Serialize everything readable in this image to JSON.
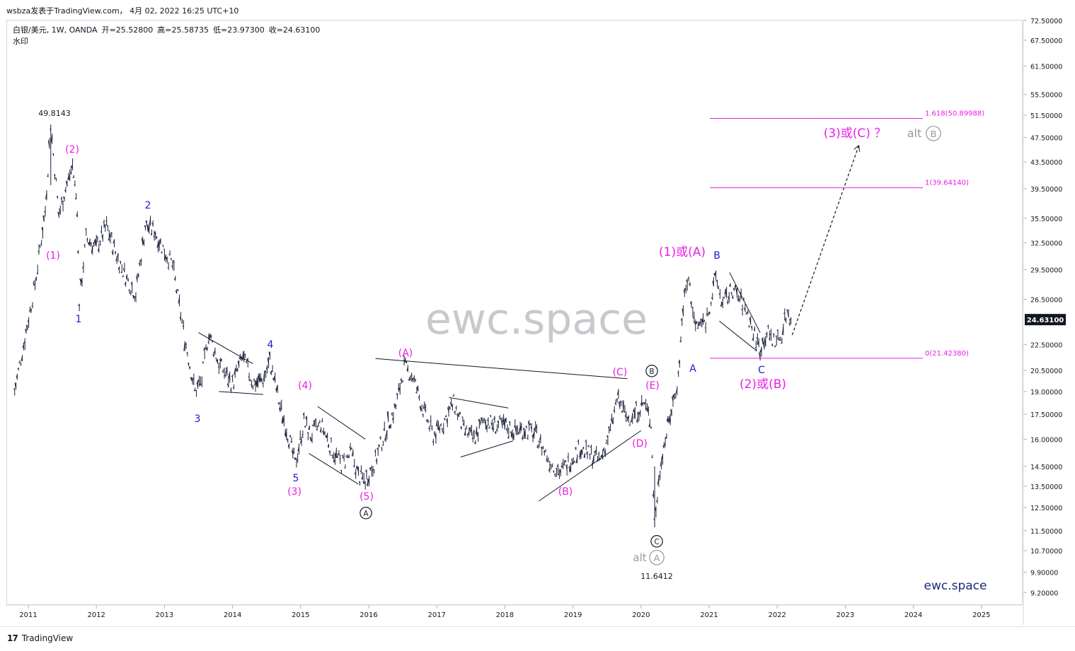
{
  "header": {
    "publisher": "wsbza发表于TradingView.com， 4月 02, 2022 16:25 UTC+10"
  },
  "legend": {
    "symbol": "白银/美元, 1W, OANDA",
    "open": "开=25.52800",
    "high": "高=25.58735",
    "low": "低=23.97300",
    "close": "收=24.63100",
    "watermark_label": "水印"
  },
  "watermark": "ewc.space",
  "brand_corner": "ewc.space",
  "footer": {
    "logo_text": "TradingView",
    "logo_mark": "17"
  },
  "colors": {
    "magenta": "#e91ee3",
    "blue": "#1a1ad6",
    "black": "#131722",
    "grey": "#9598a1",
    "price_badge": "#131722"
  },
  "chart_data": {
    "type": "line",
    "subtype": "ohlc-bars-weekly",
    "title": "白银/美元, 1W, OANDA",
    "xlabel": "",
    "ylabel": "",
    "x_ticks": [
      "2011",
      "2012",
      "2013",
      "2014",
      "2015",
      "2016",
      "2017",
      "2018",
      "2019",
      "2020",
      "2021",
      "2022",
      "2023",
      "2024",
      "2025"
    ],
    "y_ticks": [
      "72.50000",
      "67.50000",
      "61.50000",
      "55.50000",
      "51.50000",
      "47.50000",
      "43.50000",
      "39.50000",
      "35.50000",
      "32.50000",
      "29.50000",
      "26.50000",
      "22.50000",
      "20.50000",
      "19.00000",
      "17.50000",
      "16.00000",
      "14.50000",
      "13.50000",
      "12.50000",
      "11.50000",
      "10.70000",
      "9.90000",
      "9.20000"
    ],
    "y_scale": "log",
    "current_price": "24.63100",
    "series": [
      {
        "values": [
          [
            2010.8,
            19.0
          ],
          [
            2010.95,
            23.0
          ],
          [
            2011.1,
            28.0
          ],
          [
            2011.25,
            36.5
          ],
          [
            2011.33,
            49.8
          ],
          [
            2011.45,
            36.0
          ],
          [
            2011.55,
            39.5
          ],
          [
            2011.65,
            43.0
          ],
          [
            2011.72,
            37.0
          ],
          [
            2011.75,
            26.2
          ],
          [
            2011.85,
            33.0
          ],
          [
            2012.0,
            32.0
          ],
          [
            2012.15,
            34.5
          ],
          [
            2012.3,
            31.0
          ],
          [
            2012.45,
            28.5
          ],
          [
            2012.58,
            27.0
          ],
          [
            2012.72,
            34.5
          ],
          [
            2012.85,
            34.0
          ],
          [
            2013.0,
            31.5
          ],
          [
            2013.12,
            30.0
          ],
          [
            2013.3,
            23.0
          ],
          [
            2013.45,
            19.0
          ],
          [
            2013.55,
            19.8
          ],
          [
            2013.65,
            23.5
          ],
          [
            2013.8,
            21.0
          ],
          [
            2014.0,
            19.5
          ],
          [
            2014.15,
            21.5
          ],
          [
            2014.3,
            19.6
          ],
          [
            2014.45,
            19.8
          ],
          [
            2014.55,
            21.2
          ],
          [
            2014.7,
            18.0
          ],
          [
            2014.85,
            15.8
          ],
          [
            2014.92,
            14.6
          ],
          [
            2015.05,
            17.0
          ],
          [
            2015.15,
            16.2
          ],
          [
            2015.3,
            16.9
          ],
          [
            2015.45,
            15.5
          ],
          [
            2015.6,
            14.6
          ],
          [
            2015.75,
            15.2
          ],
          [
            2015.85,
            14.0
          ],
          [
            2015.95,
            13.8
          ],
          [
            2016.1,
            14.8
          ],
          [
            2016.25,
            16.5
          ],
          [
            2016.4,
            18.0
          ],
          [
            2016.52,
            20.8
          ],
          [
            2016.65,
            20.0
          ],
          [
            2016.8,
            17.8
          ],
          [
            2016.95,
            16.2
          ],
          [
            2017.1,
            17.0
          ],
          [
            2017.25,
            18.2
          ],
          [
            2017.4,
            16.5
          ],
          [
            2017.55,
            16.0
          ],
          [
            2017.7,
            17.2
          ],
          [
            2017.85,
            16.8
          ],
          [
            2018.0,
            16.8
          ],
          [
            2018.15,
            16.5
          ],
          [
            2018.3,
            16.6
          ],
          [
            2018.45,
            16.3
          ],
          [
            2018.6,
            15.2
          ],
          [
            2018.7,
            14.6
          ],
          [
            2018.82,
            14.2
          ],
          [
            2018.95,
            14.8
          ],
          [
            2019.1,
            15.5
          ],
          [
            2019.25,
            15.1
          ],
          [
            2019.4,
            14.8
          ],
          [
            2019.55,
            16.5
          ],
          [
            2019.65,
            18.5
          ],
          [
            2019.8,
            17.2
          ],
          [
            2019.95,
            17.8
          ],
          [
            2020.05,
            18.2
          ],
          [
            2020.15,
            17.0
          ],
          [
            2020.2,
            11.8
          ],
          [
            2020.3,
            15.0
          ],
          [
            2020.45,
            17.8
          ],
          [
            2020.55,
            20.0
          ],
          [
            2020.62,
            26.0
          ],
          [
            2020.7,
            28.5
          ],
          [
            2020.8,
            24.0
          ],
          [
            2020.95,
            24.5
          ],
          [
            2021.05,
            27.0
          ],
          [
            2021.1,
            28.8
          ],
          [
            2021.2,
            26.0
          ],
          [
            2021.35,
            27.5
          ],
          [
            2021.45,
            26.5
          ],
          [
            2021.55,
            25.5
          ],
          [
            2021.65,
            23.5
          ],
          [
            2021.75,
            22.2
          ],
          [
            2021.85,
            23.5
          ],
          [
            2021.95,
            22.8
          ],
          [
            2022.05,
            23.0
          ],
          [
            2022.15,
            25.5
          ],
          [
            2022.22,
            24.6
          ]
        ]
      }
    ],
    "annotations": [
      {
        "text": "49.8143",
        "color": "black"
      },
      {
        "text": "11.6412",
        "color": "black"
      },
      {
        "text": "(1)",
        "color": "magenta"
      },
      {
        "text": "(2)",
        "color": "magenta"
      },
      {
        "text": "(3)",
        "color": "magenta"
      },
      {
        "text": "(4)",
        "color": "magenta"
      },
      {
        "text": "(5)",
        "color": "magenta"
      },
      {
        "text": "1",
        "color": "blue"
      },
      {
        "text": "2",
        "color": "blue"
      },
      {
        "text": "3",
        "color": "blue"
      },
      {
        "text": "4",
        "color": "blue"
      },
      {
        "text": "5",
        "color": "blue"
      },
      {
        "text": "(A)",
        "color": "magenta"
      },
      {
        "text": "(B)",
        "color": "magenta"
      },
      {
        "text": "(C)",
        "color": "magenta"
      },
      {
        "text": "(D)",
        "color": "magenta"
      },
      {
        "text": "(E)",
        "color": "magenta"
      },
      {
        "text": "A",
        "color": "black"
      },
      {
        "text": "B",
        "color": "black"
      },
      {
        "text": "C",
        "color": "black"
      },
      {
        "text": "alt",
        "color": "grey"
      },
      {
        "text": "A",
        "color": "grey"
      },
      {
        "text": "alt",
        "color": "grey"
      },
      {
        "text": "B",
        "color": "grey"
      },
      {
        "text": "(1)或(A)",
        "color": "magenta"
      },
      {
        "text": "(2)或(B)",
        "color": "magenta"
      },
      {
        "text": "(3)或(C) ？",
        "color": "magenta"
      },
      {
        "text": "A",
        "color": "blue"
      },
      {
        "text": "B",
        "color": "blue"
      },
      {
        "text": "C",
        "color": "blue"
      }
    ],
    "fib_levels": [
      {
        "label": "1.618(50.89988)",
        "value": 50.89988
      },
      {
        "label": "1(39.64140)",
        "value": 39.6414
      },
      {
        "label": "0(21.42380)",
        "value": 21.4238
      }
    ]
  }
}
